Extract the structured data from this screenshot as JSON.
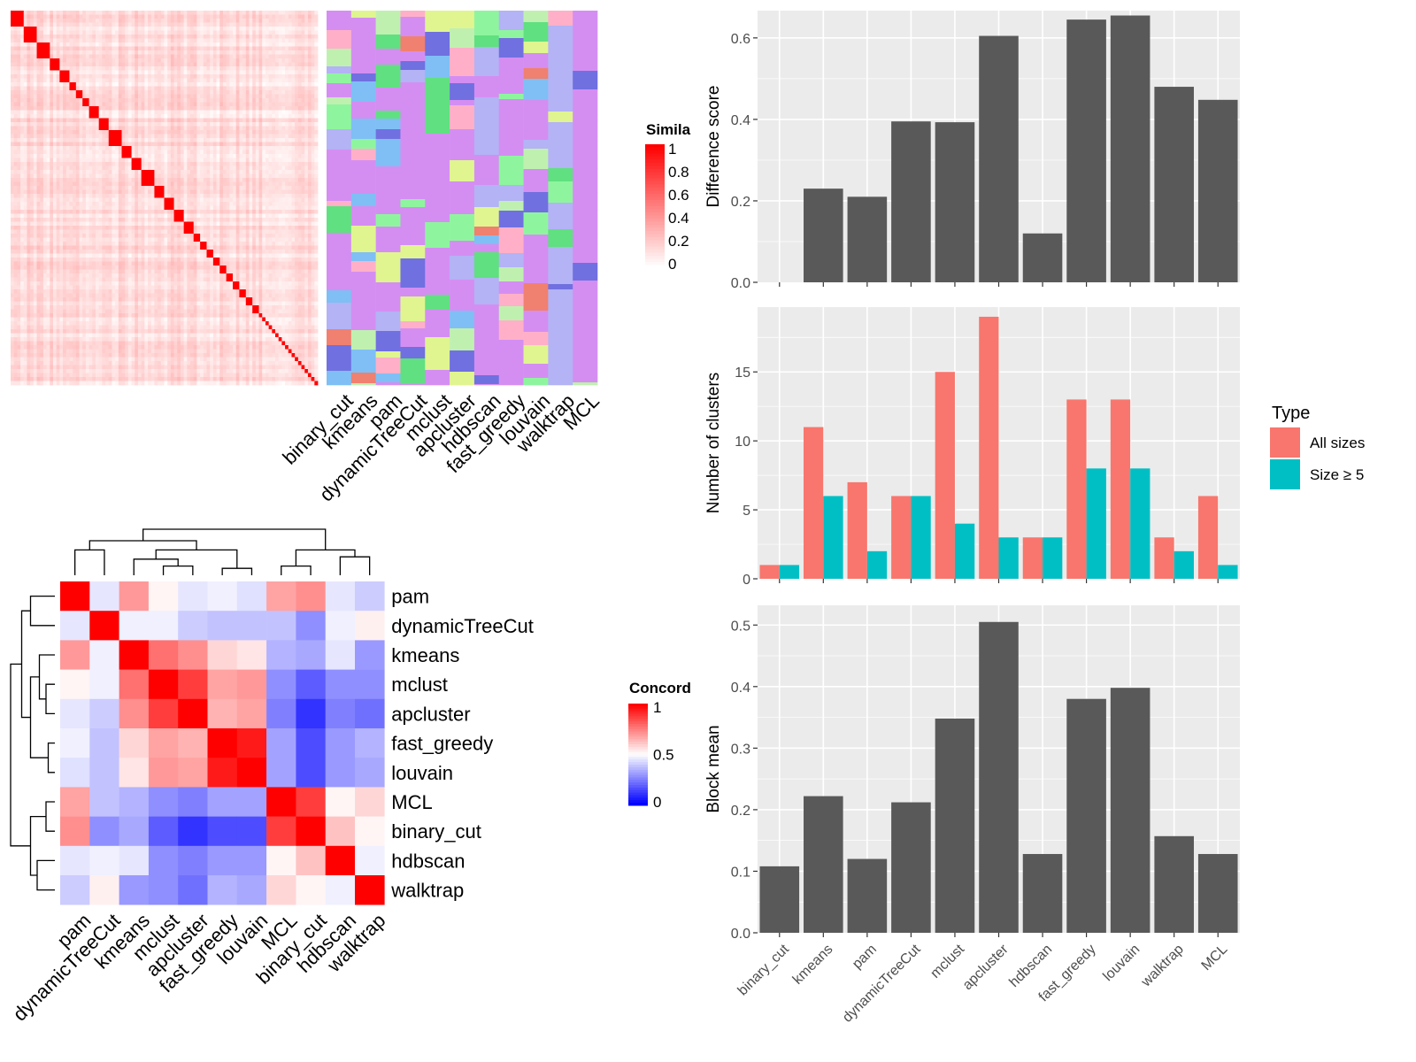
{
  "methods_x": [
    "binary_cut",
    "kmeans",
    "pam",
    "dynamicTreeCut",
    "mclust",
    "apcluster",
    "hdbscan",
    "fast_greedy",
    "louvain",
    "walktrap",
    "MCL"
  ],
  "colors": {
    "bar": "#595959",
    "panel_bg": "#ebebeb",
    "all_sizes": "#f8766d",
    "size_ge5": "#00bfc4",
    "heat_high": "#ff0000",
    "heat_low": "#ffffff",
    "conc_low": "#0000ff",
    "conc_mid": "#ffffff",
    "conc_high": "#ff0000",
    "cluster_palette": [
      "#d48ef2",
      "#8ef59e",
      "#b3b3f5",
      "#7fbff5",
      "#f08070",
      "#e0f590",
      "#7070e0",
      "#ffb0c8",
      "#60e080",
      "#c0f0b0"
    ]
  },
  "similarity_heatmap": {
    "legend_title": "Simila",
    "legend_ticks": [
      "1",
      "0.8",
      "0.6",
      "0.4",
      "0.2",
      "0"
    ],
    "column_labels": [
      "binary_cut",
      "kmeans",
      "pam",
      "dynamicTreeCut",
      "mclust",
      "apcluster",
      "hdbscan",
      "fast_greedy",
      "louvain",
      "walktrap",
      "MCL"
    ],
    "matrix_size": 80
  },
  "concordance_heatmap": {
    "legend_title": "Concord",
    "legend_ticks": [
      "1",
      "0.5",
      "0"
    ],
    "order": [
      "pam",
      "dynamicTreeCut",
      "kmeans",
      "mclust",
      "apcluster",
      "fast_greedy",
      "louvain",
      "MCL",
      "binary_cut",
      "hdbscan",
      "walktrap"
    ],
    "matrix": [
      [
        1.0,
        0.45,
        0.7,
        0.52,
        0.45,
        0.47,
        0.44,
        0.68,
        0.72,
        0.45,
        0.4
      ],
      [
        0.45,
        1.0,
        0.47,
        0.47,
        0.4,
        0.38,
        0.38,
        0.38,
        0.28,
        0.47,
        0.53
      ],
      [
        0.7,
        0.47,
        1.0,
        0.78,
        0.72,
        0.58,
        0.55,
        0.35,
        0.33,
        0.45,
        0.3
      ],
      [
        0.52,
        0.47,
        0.78,
        1.0,
        0.88,
        0.68,
        0.7,
        0.28,
        0.18,
        0.28,
        0.28
      ],
      [
        0.45,
        0.4,
        0.72,
        0.88,
        1.0,
        0.65,
        0.68,
        0.25,
        0.1,
        0.25,
        0.22
      ],
      [
        0.47,
        0.38,
        0.58,
        0.68,
        0.65,
        1.0,
        0.95,
        0.32,
        0.15,
        0.3,
        0.35
      ],
      [
        0.44,
        0.38,
        0.55,
        0.7,
        0.68,
        0.95,
        1.0,
        0.32,
        0.15,
        0.3,
        0.33
      ],
      [
        0.68,
        0.38,
        0.35,
        0.28,
        0.25,
        0.32,
        0.32,
        1.0,
        0.88,
        0.52,
        0.58
      ],
      [
        0.72,
        0.28,
        0.33,
        0.18,
        0.1,
        0.15,
        0.15,
        0.88,
        1.0,
        0.62,
        0.52
      ],
      [
        0.45,
        0.47,
        0.45,
        0.28,
        0.25,
        0.3,
        0.3,
        0.52,
        0.62,
        1.0,
        0.47
      ],
      [
        0.4,
        0.53,
        0.3,
        0.28,
        0.22,
        0.35,
        0.33,
        0.58,
        0.52,
        0.47,
        1.0
      ]
    ]
  },
  "chart_data": [
    {
      "type": "bar",
      "categories": [
        "binary_cut",
        "kmeans",
        "pam",
        "dynamicTreeCut",
        "mclust",
        "apcluster",
        "hdbscan",
        "fast_greedy",
        "louvain",
        "walktrap",
        "MCL"
      ],
      "values": [
        0.0,
        0.23,
        0.21,
        0.395,
        0.393,
        0.605,
        0.12,
        0.645,
        0.655,
        0.48,
        0.448
      ],
      "ylabel": "Difference score",
      "ylim": [
        0,
        0.667
      ],
      "yticks": [
        "0.0",
        "0.2",
        "0.4",
        "0.6"
      ],
      "grid": true
    },
    {
      "type": "bar",
      "categories": [
        "binary_cut",
        "kmeans",
        "pam",
        "dynamicTreeCut",
        "mclust",
        "apcluster",
        "hdbscan",
        "fast_greedy",
        "louvain",
        "walktrap",
        "MCL"
      ],
      "series": [
        {
          "name": "All sizes",
          "values": [
            1,
            11,
            7,
            6,
            15,
            19,
            3,
            13,
            13,
            3,
            6
          ]
        },
        {
          "name": "Size ≥ 5",
          "values": [
            1,
            6,
            2,
            6,
            4,
            3,
            3,
            8,
            8,
            2,
            1
          ]
        }
      ],
      "ylabel": "Number of clusters",
      "ylim": [
        0,
        19.7
      ],
      "yticks": [
        "0",
        "5",
        "10",
        "15"
      ],
      "legend_title": "Type",
      "legend_placement": "right",
      "grid": true
    },
    {
      "type": "bar",
      "categories": [
        "binary_cut",
        "kmeans",
        "pam",
        "dynamicTreeCut",
        "mclust",
        "apcluster",
        "hdbscan",
        "fast_greedy",
        "louvain",
        "walktrap",
        "MCL"
      ],
      "values": [
        0.108,
        0.222,
        0.12,
        0.212,
        0.348,
        0.505,
        0.128,
        0.38,
        0.398,
        0.157,
        0.128
      ],
      "ylabel": "Block mean",
      "ylim": [
        0,
        0.532
      ],
      "yticks": [
        "0.0",
        "0.1",
        "0.2",
        "0.3",
        "0.4",
        "0.5"
      ],
      "xlabel": "",
      "grid": true
    }
  ]
}
